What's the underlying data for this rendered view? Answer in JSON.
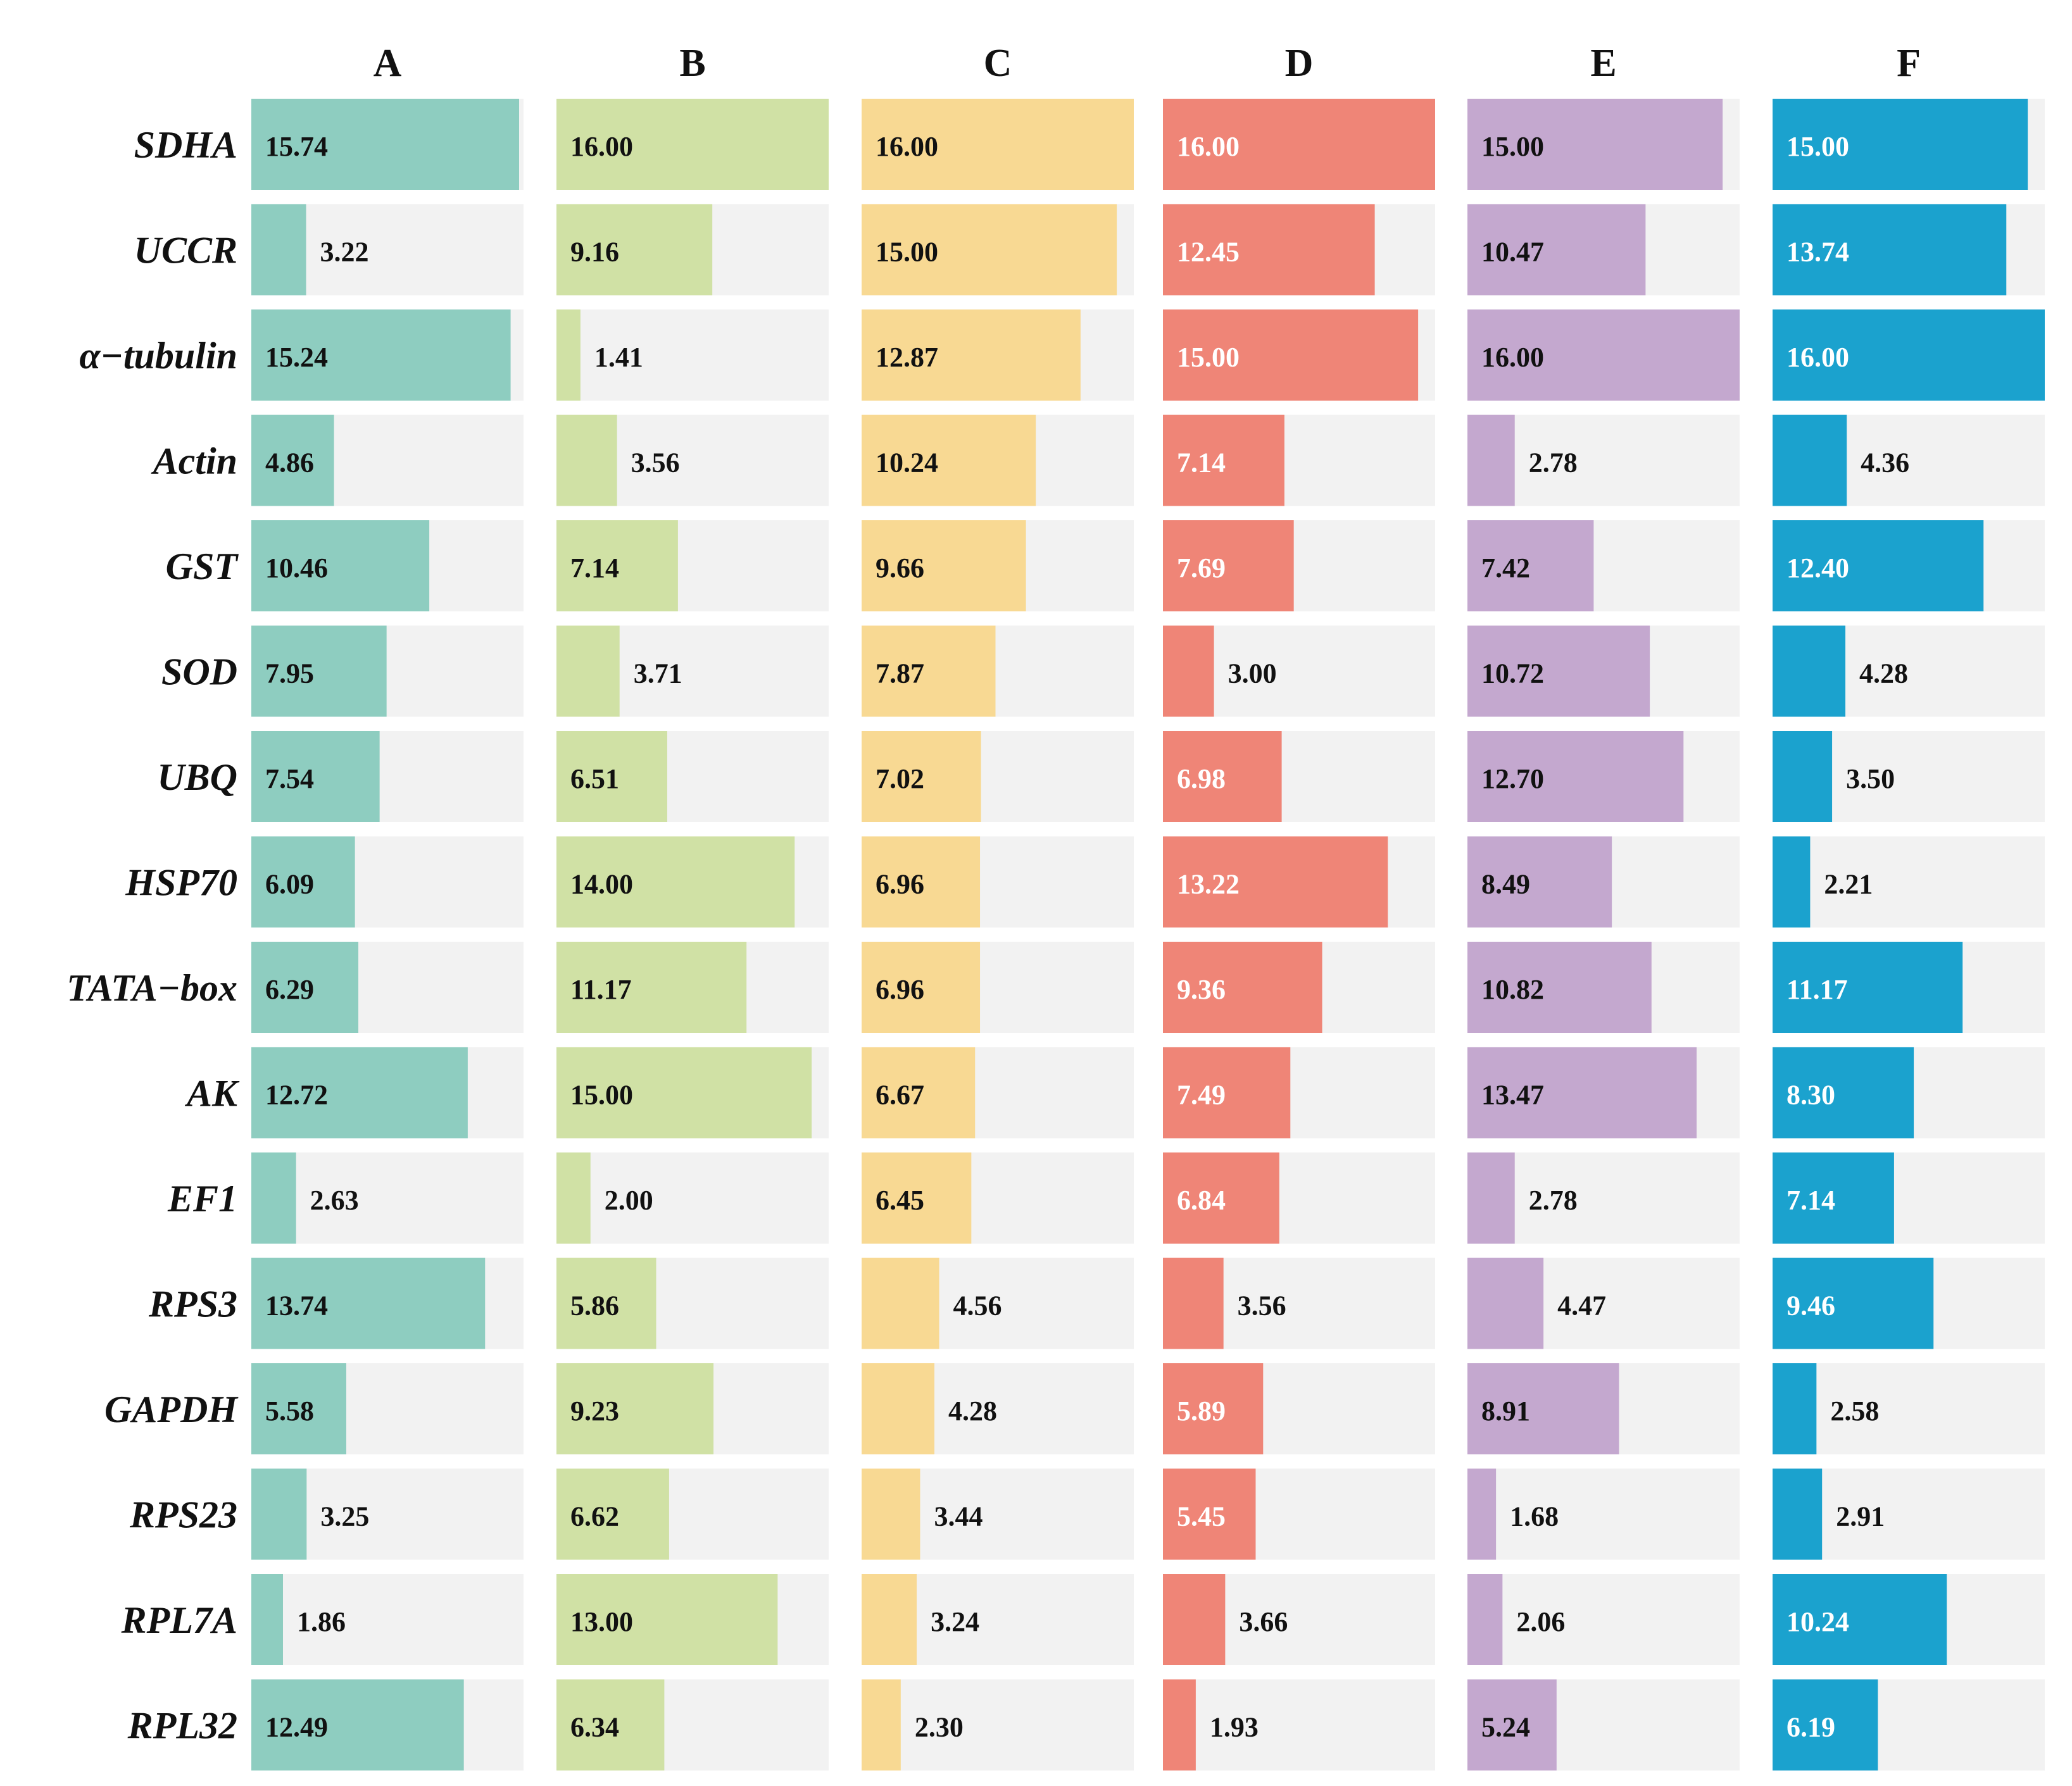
{
  "chart_data": {
    "type": "bar",
    "orientation": "horizontal",
    "xlim": [
      0,
      16
    ],
    "categories": [
      "SDHA",
      "UCCR",
      "α−tubulin",
      "Actin",
      "GST",
      "SOD",
      "UBQ",
      "HSP70",
      "TATA−box",
      "AK",
      "EF1",
      "RPS3",
      "GAPDH",
      "RPS23",
      "RPL7A",
      "RPL32"
    ],
    "series": [
      {
        "name": "A",
        "color": "#8ecdc0",
        "label_inside_color": "#111111",
        "values": [
          15.74,
          3.22,
          15.24,
          4.86,
          10.46,
          7.95,
          7.54,
          6.09,
          6.29,
          12.72,
          2.63,
          13.74,
          5.58,
          3.25,
          1.86,
          12.49
        ],
        "labels": [
          "15.74",
          "3.22",
          "15.24",
          "4.86",
          "10.46",
          "7.95",
          "7.54",
          "6.09",
          "6.29",
          "12.72",
          "2.63",
          "13.74",
          "5.58",
          "3.25",
          "1.86",
          "12.49"
        ]
      },
      {
        "name": "B",
        "color": "#d0e1a5",
        "label_inside_color": "#111111",
        "values": [
          16.0,
          9.16,
          1.41,
          3.56,
          7.14,
          3.71,
          6.51,
          14.0,
          11.17,
          15.0,
          2.0,
          5.86,
          9.23,
          6.62,
          13.0,
          6.34
        ],
        "labels": [
          "16.00",
          "9.16",
          "1.41",
          "3.56",
          "7.14",
          "3.71",
          "6.51",
          "14.00",
          "11.17",
          "15.00",
          "2.00",
          "5.86",
          "9.23",
          "6.62",
          "13.00",
          "6.34"
        ]
      },
      {
        "name": "C",
        "color": "#f8d993",
        "label_inside_color": "#111111",
        "values": [
          16.0,
          15.0,
          12.87,
          10.24,
          9.66,
          7.87,
          7.02,
          6.96,
          6.96,
          6.67,
          6.45,
          4.56,
          4.28,
          3.44,
          3.24,
          2.3
        ],
        "labels": [
          "16.00",
          "15.00",
          "12.87",
          "10.24",
          "9.66",
          "7.87",
          "7.02",
          "6.96",
          "6.96",
          "6.67",
          "6.45",
          "4.56",
          "4.28",
          "3.44",
          "3.24",
          "2.30"
        ]
      },
      {
        "name": "D",
        "color": "#ef8577",
        "label_inside_color": "#ffffff",
        "values": [
          16.0,
          12.45,
          15.0,
          7.14,
          7.69,
          3.0,
          6.98,
          13.22,
          9.36,
          7.49,
          6.84,
          3.56,
          5.89,
          5.45,
          3.66,
          1.93
        ],
        "labels": [
          "16.00",
          "12.45",
          "15.00",
          "7.14",
          "7.69",
          "3.00",
          "6.98",
          "13.22",
          "9.36",
          "7.49",
          "6.84",
          "3.56",
          "5.89",
          "5.45",
          "3.66",
          "1.93"
        ]
      },
      {
        "name": "E",
        "color": "#c4a8cf",
        "label_inside_color": "#111111",
        "values": [
          15.0,
          10.47,
          16.0,
          2.78,
          7.42,
          10.72,
          12.7,
          8.49,
          10.82,
          13.47,
          2.78,
          4.47,
          8.91,
          1.68,
          2.06,
          5.24
        ],
        "labels": [
          "15.00",
          "10.47",
          "16.00",
          "2.78",
          "7.42",
          "10.72",
          "12.70",
          "8.49",
          "10.82",
          "13.47",
          "2.78",
          "4.47",
          "8.91",
          "1.68",
          "2.06",
          "5.24"
        ]
      },
      {
        "name": "F",
        "color": "#1ba2ce",
        "label_inside_color": "#ffffff",
        "values": [
          15.0,
          13.74,
          16.0,
          4.36,
          12.4,
          4.28,
          3.5,
          2.21,
          11.17,
          8.3,
          7.14,
          9.46,
          2.58,
          2.91,
          10.24,
          6.19
        ],
        "labels": [
          "15.00",
          "13.74",
          "16.00",
          "4.36",
          "12.40",
          "4.28",
          "3.50",
          "2.21",
          "11.17",
          "8.30",
          "7.14",
          "9.46",
          "2.58",
          "2.91",
          "10.24",
          "6.19"
        ]
      }
    ],
    "colors": {
      "track": "#f2f2f2",
      "outside_label": "#111111"
    }
  }
}
